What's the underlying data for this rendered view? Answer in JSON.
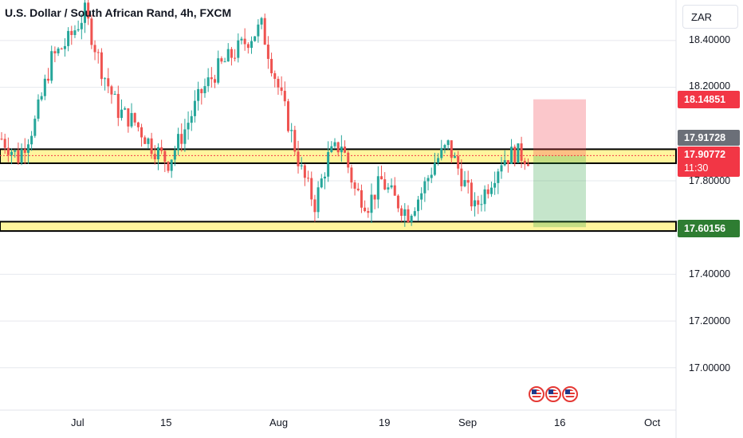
{
  "title": "U.S. Dollar / South African Rand, 4h, FXCM",
  "currency": "ZAR",
  "price_axis": [
    "18.40000",
    "18.20000",
    "17.80000",
    "17.40000",
    "17.20000",
    "17.00000"
  ],
  "price_tags": {
    "stop": "18.14851",
    "zone": "17.91728",
    "current": "17.90772",
    "countdown": "11:30",
    "target": "17.60156"
  },
  "time_axis": [
    "Jul",
    "15",
    "Aug",
    "19",
    "Sep",
    "16",
    "Oct"
  ],
  "colors": {
    "up": "#26a69a",
    "down": "#ef5350",
    "zone_fill": "#fff59d",
    "stop_tag": "#f23645",
    "target_tag": "#2e7d32",
    "zone_tag": "#6b6f78"
  },
  "events": [
    "us-flag-icon",
    "us-flag-icon",
    "us-flag-icon"
  ],
  "chart_data": {
    "type": "candlestick",
    "symbol": "USD/ZAR",
    "timeframe": "4h",
    "x_labels": [
      "Jul",
      "15",
      "Aug",
      "19",
      "Sep",
      "16",
      "Oct"
    ],
    "ylim": [
      16.85,
      18.55
    ],
    "path_close": [
      [
        0,
        17.98
      ],
      [
        5,
        17.9
      ],
      [
        10,
        18.05
      ],
      [
        15,
        18.32
      ],
      [
        20,
        18.4
      ],
      [
        25,
        18.52
      ],
      [
        30,
        18.28
      ],
      [
        35,
        18.1
      ],
      [
        40,
        18.05
      ],
      [
        45,
        17.95
      ],
      [
        50,
        17.88
      ],
      [
        55,
        18.02
      ],
      [
        60,
        18.18
      ],
      [
        65,
        18.28
      ],
      [
        70,
        18.35
      ],
      [
        75,
        18.42
      ],
      [
        78,
        18.46
      ],
      [
        82,
        18.25
      ],
      [
        86,
        18.05
      ],
      [
        90,
        17.84
      ],
      [
        94,
        17.7
      ],
      [
        98,
        17.9
      ],
      [
        102,
        17.96
      ],
      [
        106,
        17.76
      ],
      [
        110,
        17.7
      ],
      [
        114,
        17.8
      ],
      [
        118,
        17.72
      ],
      [
        122,
        17.66
      ],
      [
        126,
        17.75
      ],
      [
        130,
        17.88
      ],
      [
        134,
        17.95
      ],
      [
        138,
        17.82
      ],
      [
        142,
        17.68
      ],
      [
        146,
        17.78
      ],
      [
        150,
        17.89
      ],
      [
        154,
        17.92
      ],
      [
        158,
        17.9
      ]
    ],
    "levels": {
      "zone_top": 17.935,
      "zone_bottom": 17.875,
      "support_top": 17.625,
      "support_bottom": 17.585,
      "current": 17.90772,
      "stop": 18.14851,
      "target": 17.60156
    }
  }
}
